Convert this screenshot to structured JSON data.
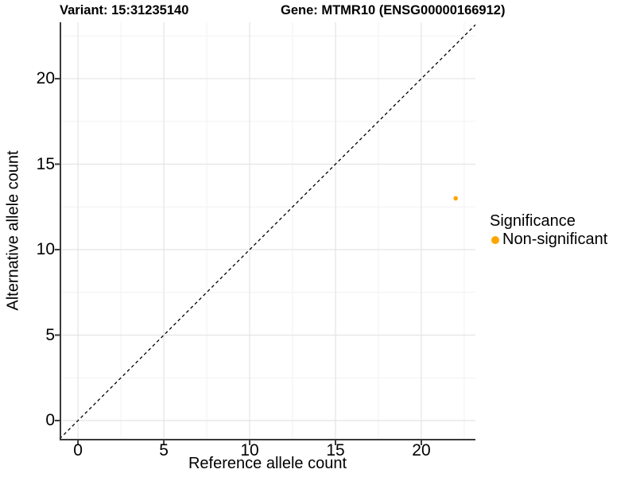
{
  "chart_data": {
    "type": "scatter",
    "title_left": "Variant: 15:31235140",
    "title_right": "Gene: MTMR10 (ENSG00000166912)",
    "xlabel": "Reference allele count",
    "ylabel": "Alternative allele count",
    "x_ticks": [
      0,
      5,
      10,
      15,
      20
    ],
    "y_ticks": [
      0,
      5,
      10,
      15,
      20
    ],
    "xlim": [
      -1.07,
      23.15
    ],
    "ylim": [
      -1.07,
      23.3
    ],
    "minor_tick_step": 2.5,
    "grid": "major+minor",
    "identity_line": {
      "equation": "y = x",
      "style": "dashed",
      "color": "#000000"
    },
    "series": [
      {
        "name": "Non-significant",
        "color": "#FFA500",
        "points": [
          {
            "x": 22,
            "y": 13
          }
        ]
      }
    ],
    "legend_position": "right"
  },
  "legend": {
    "title": "Significance",
    "entries": [
      {
        "label": "Non-significant",
        "color": "#FFA500"
      }
    ]
  },
  "colors": {
    "axis_line": "#3a3a3a",
    "tick_mark": "#3a3a3a",
    "major_grid": "#E4E4E4",
    "minor_grid": "#F2F2F2",
    "dashed_line": "#000000",
    "point": "#FFA500",
    "background": "#FFFFFF",
    "text": "#000000"
  }
}
